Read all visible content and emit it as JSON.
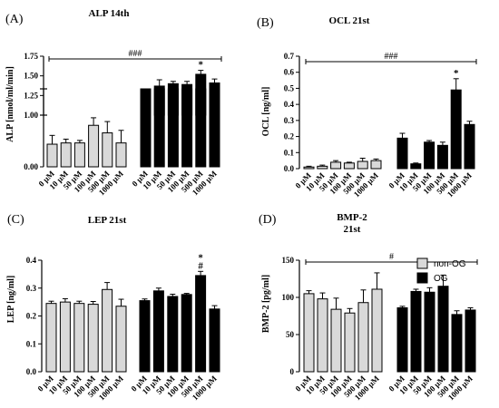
{
  "colors": {
    "non_og": "#d9d9d9",
    "og": "#000000",
    "ink": "#000000"
  },
  "legend": [
    {
      "label": "non-OG",
      "color": "#d9d9d9"
    },
    {
      "label": "OG",
      "color": "#000000"
    }
  ],
  "chart_data": [
    {
      "type": "bar",
      "letter": "(A)",
      "title": "ALP 14th",
      "subtitle": "",
      "ylabel": "ALP [nmol/ml/min]",
      "broken_axis": true,
      "lower_ylim": [
        0,
        0.62
      ],
      "upper_ylim": [
        1.0,
        1.75
      ],
      "yticks": [
        "0.00",
        "1.00",
        "1.25",
        "1.50",
        "1.75"
      ],
      "categories": [
        "0 μM",
        "10 μM",
        "50 μM",
        "100 μM",
        "500 μM",
        "1000 μM"
      ],
      "series": [
        {
          "name": "non-OG",
          "values": [
            0.18,
            0.19,
            0.19,
            0.33,
            0.27,
            0.19
          ],
          "errors": [
            0.07,
            0.03,
            0.02,
            0.06,
            0.09,
            0.1
          ]
        },
        {
          "name": "OG",
          "values": [
            1.26,
            1.37,
            1.4,
            1.39,
            1.52,
            1.41
          ],
          "errors": [
            0.03,
            0.08,
            0.03,
            0.04,
            0.05,
            0.05
          ]
        }
      ],
      "bracket": "###",
      "annotations": [
        {
          "text": "*",
          "series": 1,
          "index": 4
        }
      ]
    },
    {
      "type": "bar",
      "letter": "(B)",
      "title": "OCL 21st",
      "subtitle": "",
      "ylabel": "OCL [ng/ml]",
      "broken_axis": false,
      "ylim": [
        0,
        0.7
      ],
      "yticks": [
        "0.0",
        "0.1",
        "0.2",
        "0.3",
        "0.4",
        "0.5",
        "0.6",
        "0.7"
      ],
      "categories": [
        "0 μM",
        "10 μM",
        "50 μM",
        "100 μM",
        "500 μM",
        "1000 μM"
      ],
      "series": [
        {
          "name": "non-OG",
          "values": [
            0.01,
            0.015,
            0.04,
            0.035,
            0.045,
            0.05
          ],
          "errors": [
            0.005,
            0.007,
            0.01,
            0.005,
            0.02,
            0.01
          ]
        },
        {
          "name": "OG",
          "values": [
            0.19,
            0.03,
            0.165,
            0.145,
            0.49,
            0.275
          ],
          "errors": [
            0.03,
            0.005,
            0.01,
            0.02,
            0.07,
            0.02
          ]
        }
      ],
      "bracket": "###",
      "annotations": [
        {
          "text": "*",
          "series": 1,
          "index": 4
        }
      ]
    },
    {
      "type": "bar",
      "letter": "(C)",
      "title": "LEP 21st",
      "subtitle": "",
      "ylabel": "LEP [ng/ml]",
      "broken_axis": false,
      "ylim": [
        0,
        0.4
      ],
      "yticks": [
        "0.0",
        "0.1",
        "0.2",
        "0.3",
        "0.4"
      ],
      "categories": [
        "0 μM",
        "10 μM",
        "50 μM",
        "100 μM",
        "500 μM",
        "1000 μM"
      ],
      "series": [
        {
          "name": "non-OG",
          "values": [
            0.245,
            0.25,
            0.245,
            0.242,
            0.295,
            0.235
          ],
          "errors": [
            0.008,
            0.012,
            0.008,
            0.01,
            0.025,
            0.025
          ]
        },
        {
          "name": "OG",
          "values": [
            0.255,
            0.29,
            0.27,
            0.277,
            0.345,
            0.225
          ],
          "errors": [
            0.006,
            0.01,
            0.008,
            0.004,
            0.015,
            0.012
          ]
        }
      ],
      "bracket": "",
      "annotations": [
        {
          "text": "#",
          "series": 1,
          "index": 4
        },
        {
          "text": "*",
          "series": 1,
          "index": 4
        }
      ]
    },
    {
      "type": "bar",
      "letter": "(D)",
      "title": "BMP-2",
      "subtitle": "21st",
      "ylabel": "BMP-2 [pg/ml]",
      "broken_axis": false,
      "ylim": [
        0,
        150
      ],
      "yticks": [
        "0",
        "50",
        "100",
        "150"
      ],
      "categories": [
        "0 μM",
        "10 μM",
        "50 μM",
        "100 μM",
        "500 μM",
        "1000 μM"
      ],
      "series": [
        {
          "name": "non-OG",
          "values": [
            105,
            98,
            84,
            79,
            93,
            111
          ],
          "errors": [
            4,
            8,
            15,
            6,
            17,
            22
          ]
        },
        {
          "name": "OG",
          "values": [
            86,
            108,
            107,
            115,
            77,
            83
          ],
          "errors": [
            2,
            3,
            6,
            15,
            5,
            3
          ]
        }
      ],
      "bracket": "#",
      "annotations": []
    }
  ]
}
